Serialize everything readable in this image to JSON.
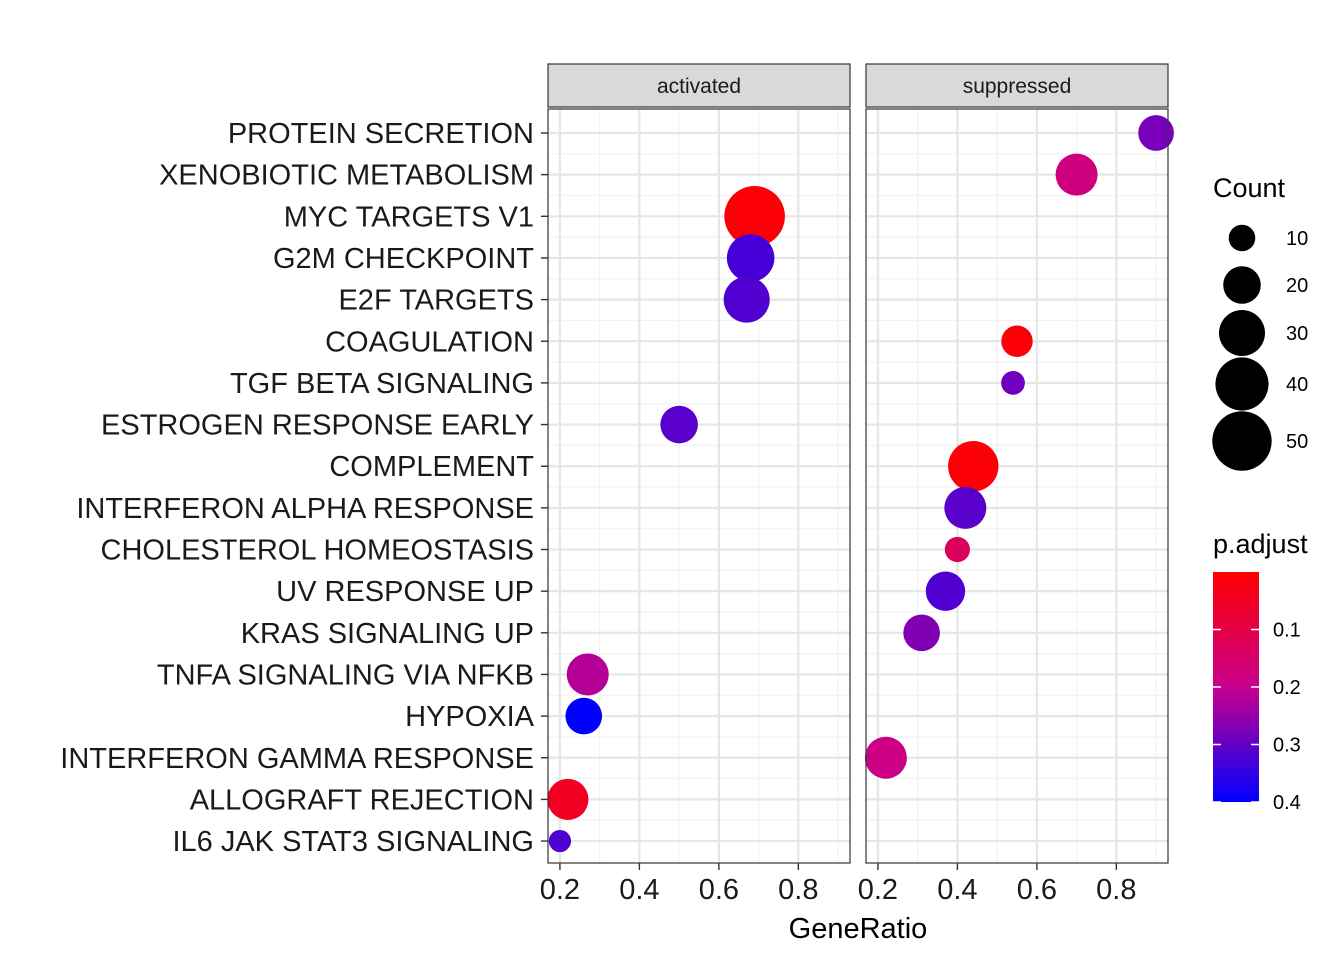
{
  "chart_data": {
    "type": "scatter",
    "title": "",
    "xlabel": "GeneRatio",
    "ylabel": "",
    "xlim": [
      0.17,
      0.93
    ],
    "x_ticks": [
      "0.2",
      "0.4",
      "0.6",
      "0.8"
    ],
    "grid": true,
    "facets": [
      "activated",
      "suppressed"
    ],
    "categories": [
      "PROTEIN SECRETION",
      "XENOBIOTIC METABOLISM",
      "MYC TARGETS V1",
      "G2M CHECKPOINT",
      "E2F TARGETS",
      "COAGULATION",
      "TGF BETA SIGNALING",
      "ESTROGEN RESPONSE EARLY",
      "COMPLEMENT",
      "INTERFERON ALPHA RESPONSE",
      "CHOLESTEROL HOMEOSTASIS",
      "UV RESPONSE UP",
      "KRAS SIGNALING UP",
      "TNFA SIGNALING VIA NFKB",
      "HYPOXIA",
      "INTERFERON GAMMA RESPONSE",
      "ALLOGRAFT REJECTION",
      "IL6 JAK STAT3 SIGNALING"
    ],
    "points": [
      {
        "facet": "activated",
        "category": "MYC TARGETS V1",
        "x": 0.69,
        "count": 52,
        "p_adjust": 0.01
      },
      {
        "facet": "activated",
        "category": "G2M CHECKPOINT",
        "x": 0.68,
        "count": 32,
        "p_adjust": 0.33
      },
      {
        "facet": "activated",
        "category": "E2F TARGETS",
        "x": 0.67,
        "count": 30,
        "p_adjust": 0.32
      },
      {
        "facet": "activated",
        "category": "ESTROGEN RESPONSE EARLY",
        "x": 0.5,
        "count": 20,
        "p_adjust": 0.31
      },
      {
        "facet": "activated",
        "category": "TNFA SIGNALING VIA NFKB",
        "x": 0.27,
        "count": 25,
        "p_adjust": 0.22
      },
      {
        "facet": "activated",
        "category": "HYPOXIA",
        "x": 0.26,
        "count": 19,
        "p_adjust": 0.42
      },
      {
        "facet": "activated",
        "category": "ALLOGRAFT REJECTION",
        "x": 0.22,
        "count": 24,
        "p_adjust": 0.05
      },
      {
        "facet": "activated",
        "category": "IL6 JAK STAT3 SIGNALING",
        "x": 0.2,
        "count": 7,
        "p_adjust": 0.32
      },
      {
        "facet": "suppressed",
        "category": "PROTEIN SECRETION",
        "x": 0.9,
        "count": 18,
        "p_adjust": 0.28
      },
      {
        "facet": "suppressed",
        "category": "XENOBIOTIC METABOLISM",
        "x": 0.7,
        "count": 25,
        "p_adjust": 0.18
      },
      {
        "facet": "suppressed",
        "category": "COAGULATION",
        "x": 0.55,
        "count": 14,
        "p_adjust": 0.01
      },
      {
        "facet": "suppressed",
        "category": "TGF BETA SIGNALING",
        "x": 0.54,
        "count": 8,
        "p_adjust": 0.29
      },
      {
        "facet": "suppressed",
        "category": "COMPLEMENT",
        "x": 0.44,
        "count": 36,
        "p_adjust": 0.01
      },
      {
        "facet": "suppressed",
        "category": "INTERFERON ALPHA RESPONSE",
        "x": 0.42,
        "count": 25,
        "p_adjust": 0.31
      },
      {
        "facet": "suppressed",
        "category": "CHOLESTEROL HOMEOSTASIS",
        "x": 0.4,
        "count": 9,
        "p_adjust": 0.13
      },
      {
        "facet": "suppressed",
        "category": "UV RESPONSE UP",
        "x": 0.37,
        "count": 22,
        "p_adjust": 0.32
      },
      {
        "facet": "suppressed",
        "category": "KRAS SIGNALING UP",
        "x": 0.31,
        "count": 19,
        "p_adjust": 0.27
      },
      {
        "facet": "suppressed",
        "category": "INTERFERON GAMMA RESPONSE",
        "x": 0.22,
        "count": 25,
        "p_adjust": 0.19
      }
    ],
    "legend_size": {
      "title": "Count",
      "values": [
        10,
        20,
        30,
        40,
        50
      ],
      "labels": [
        "10",
        "20",
        "30",
        "40",
        "50"
      ]
    },
    "legend_color": {
      "title": "p.adjust",
      "range": [
        0.0,
        0.4
      ],
      "ticks": [
        0.1,
        0.2,
        0.3,
        0.4
      ],
      "labels": [
        "0.1",
        "0.2",
        "0.3",
        "0.4"
      ],
      "low_color": "#ff0000",
      "high_color": "#0000ff"
    },
    "legend_placement": "right"
  }
}
